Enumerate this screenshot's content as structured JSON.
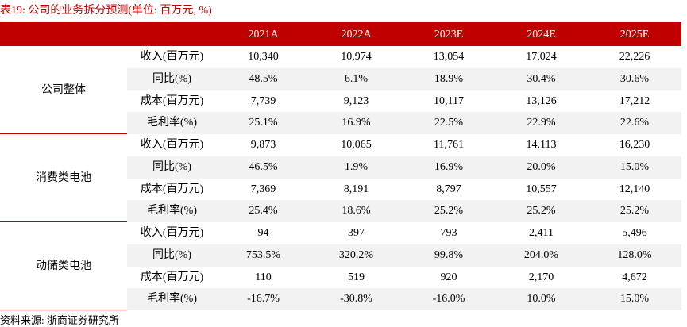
{
  "title": "表19:  公司的业务拆分预测(单位: 百万元, %)",
  "header": [
    "2021A",
    "2022A",
    "2023E",
    "2024E",
    "2025E"
  ],
  "groups": [
    {
      "name": "公司整体",
      "rows": [
        {
          "label": "收入(百万元)",
          "values": [
            "10,340",
            "10,974",
            "13,054",
            "17,024",
            "22,226"
          ]
        },
        {
          "label": "同比(%)",
          "values": [
            "48.5%",
            "6.1%",
            "18.9%",
            "30.4%",
            "30.6%"
          ]
        },
        {
          "label": "成本(百万元)",
          "values": [
            "7,739",
            "9,123",
            "10,117",
            "13,126",
            "17,212"
          ]
        },
        {
          "label": "毛利率(%)",
          "values": [
            "25.1%",
            "16.9%",
            "22.5%",
            "22.9%",
            "22.6%"
          ]
        }
      ]
    },
    {
      "name": "消费类电池",
      "rows": [
        {
          "label": "收入(百万元)",
          "values": [
            "9,873",
            "10,065",
            "11,761",
            "14,113",
            "16,230"
          ]
        },
        {
          "label": "同比(%)",
          "values": [
            "46.5%",
            "1.9%",
            "16.9%",
            "20.0%",
            "15.0%"
          ]
        },
        {
          "label": "成本(百万元)",
          "values": [
            "7,369",
            "8,191",
            "8,797",
            "10,557",
            "12,140"
          ]
        },
        {
          "label": "毛利率(%)",
          "values": [
            "25.4%",
            "18.6%",
            "25.2%",
            "25.2%",
            "25.2%"
          ]
        }
      ]
    },
    {
      "name": "动储类电池",
      "rows": [
        {
          "label": "收入(百万元)",
          "values": [
            "94",
            "397",
            "793",
            "2,411",
            "5,496"
          ]
        },
        {
          "label": "同比(%)",
          "values": [
            "753.5%",
            "320.2%",
            "99.8%",
            "204.0%",
            "128.0%"
          ]
        },
        {
          "label": "成本(百万元)",
          "values": [
            "110",
            "519",
            "920",
            "2,170",
            "4,672"
          ]
        },
        {
          "label": "毛利率(%)",
          "values": [
            "-16.7%",
            "-30.8%",
            "-16.0%",
            "10.0%",
            "15.0%"
          ]
        }
      ]
    }
  ],
  "source": "资料来源: 浙商证券研究所"
}
